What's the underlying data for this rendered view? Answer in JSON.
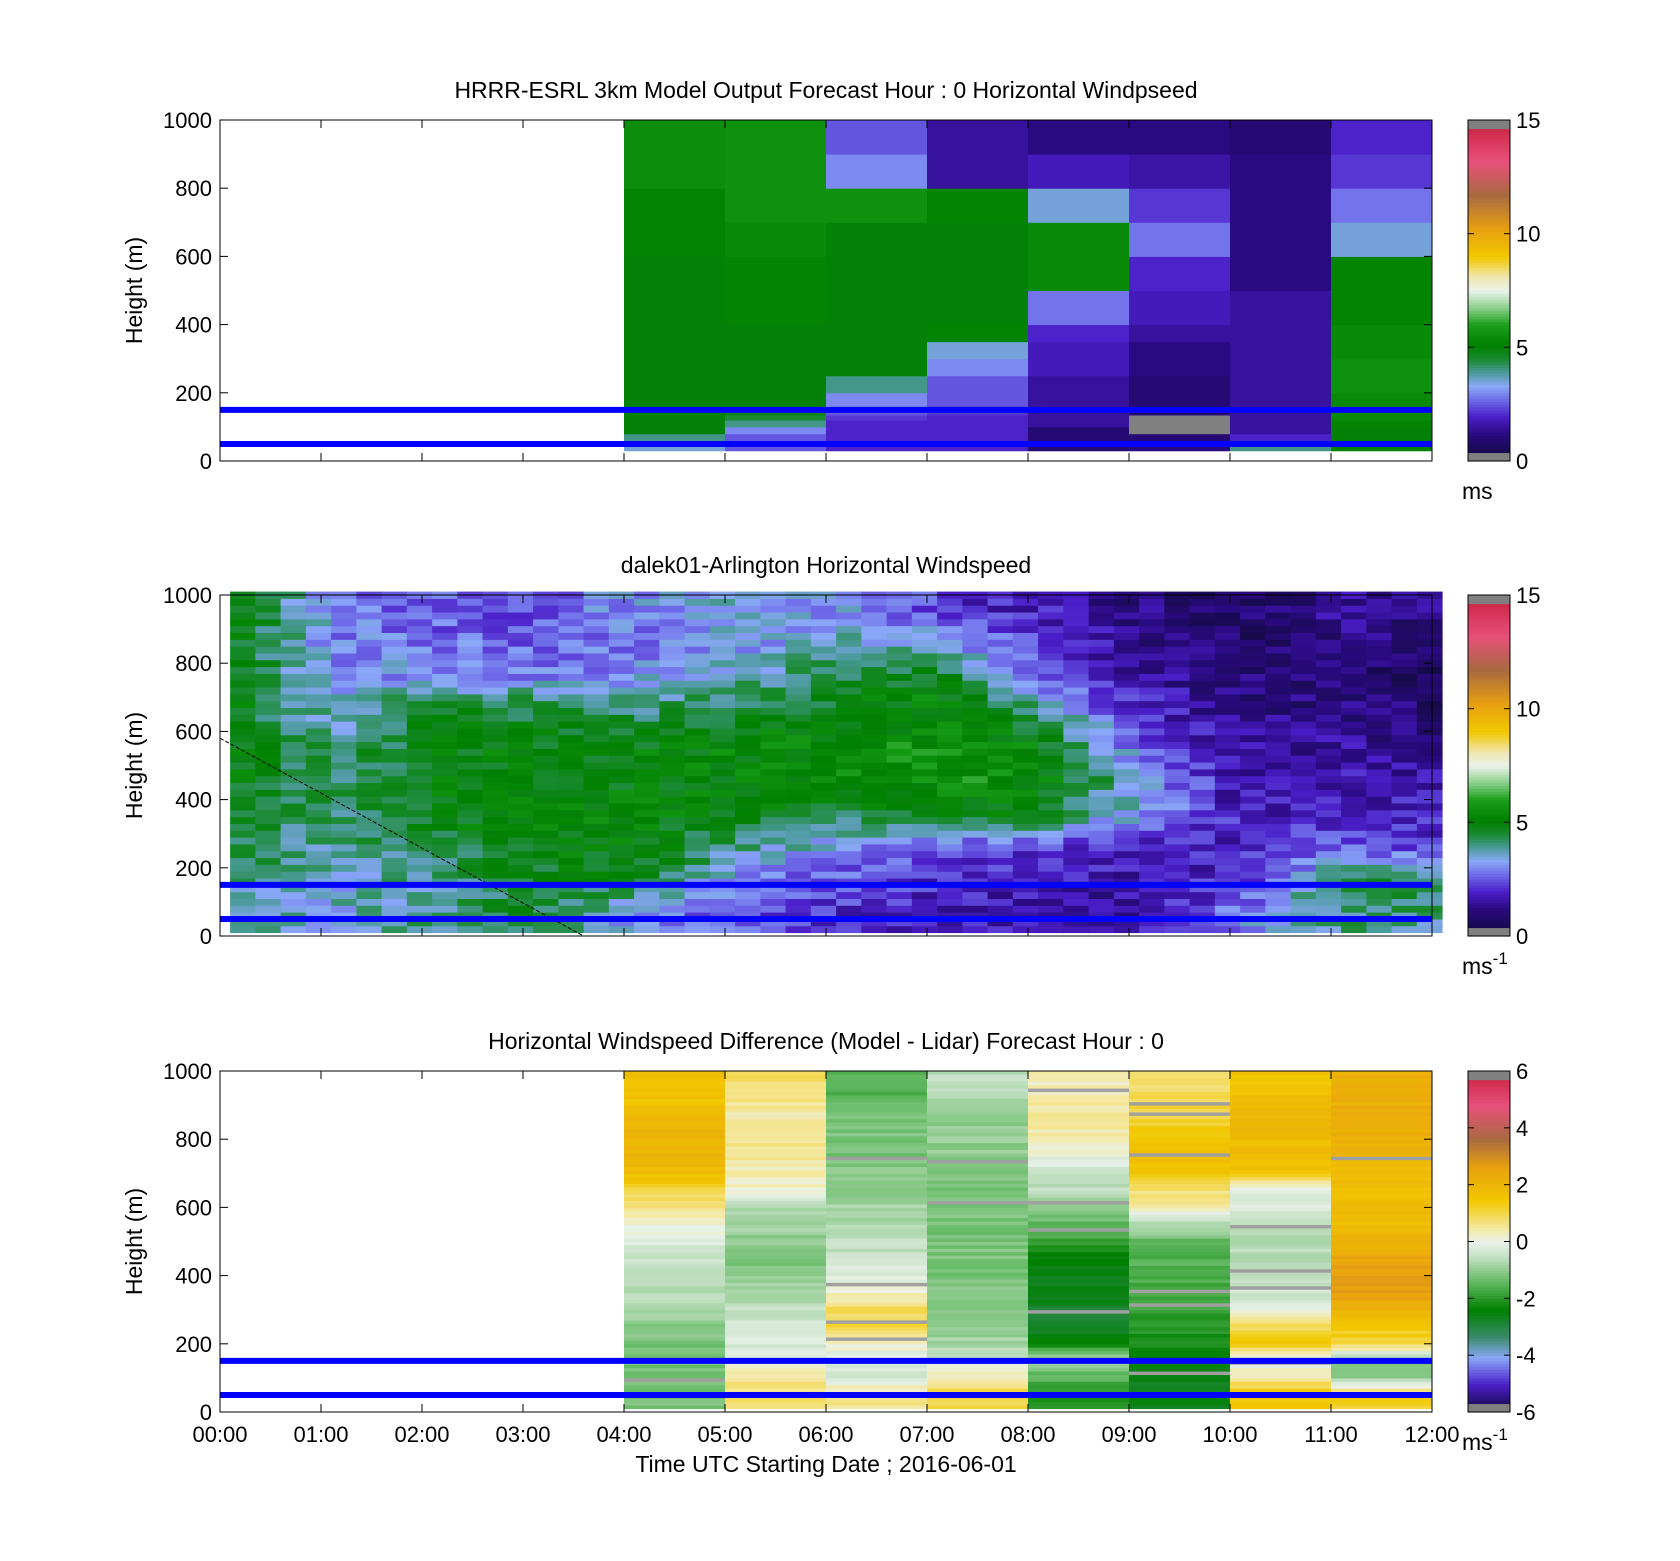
{
  "chart_data": [
    {
      "type": "heatmap",
      "title": "HRRR-ESRL 3km Model Output   Forecast Hour : 0 Horizontal Windpseed",
      "ylabel": "Height (m)",
      "xlabel": "",
      "ylim": [
        0,
        1000
      ],
      "yticks": [
        "0",
        "200",
        "400",
        "600",
        "800",
        "1000"
      ],
      "xlim": [
        0,
        12
      ],
      "x_start": 4,
      "x_step": 1,
      "colorbar": {
        "min": 0,
        "max": 15,
        "ticks": [
          "0",
          "5",
          "10",
          "15"
        ],
        "unit": "ms",
        "unit_sup": ""
      },
      "reference_lines_m": [
        50,
        150
      ],
      "levels_m": [
        30,
        45,
        60,
        80,
        100,
        120,
        135,
        150,
        200,
        250,
        300,
        350,
        400,
        500,
        600,
        700,
        800,
        900
      ],
      "columns": [
        {
          "x": 4,
          "values": [
            3.5,
            3.0,
            4.0,
            5.0,
            5.0,
            5.0,
            5.0,
            5.0,
            5.0,
            5.0,
            5.0,
            5.0,
            5.0,
            5.0,
            5.2,
            5.2,
            5.5,
            5.5
          ]
        },
        {
          "x": 5,
          "values": [
            2.5,
            2.5,
            2.5,
            3.0,
            4.0,
            4.5,
            4.8,
            5.0,
            5.0,
            5.0,
            5.0,
            5.0,
            5.2,
            5.2,
            5.4,
            5.6,
            5.6,
            5.6
          ]
        },
        {
          "x": 6,
          "values": [
            2.0,
            2.0,
            2.0,
            2.0,
            2.0,
            2.2,
            2.5,
            3.0,
            4.0,
            5.0,
            5.0,
            5.0,
            5.0,
            5.0,
            5.0,
            5.6,
            3.0,
            2.5
          ]
        },
        {
          "x": 7,
          "values": [
            2.0,
            2.0,
            2.0,
            2.0,
            2.0,
            2.0,
            2.2,
            2.5,
            2.5,
            3.0,
            3.5,
            5.2,
            5.0,
            5.0,
            5.0,
            5.2,
            1.5,
            1.5
          ]
        },
        {
          "x": 8,
          "values": [
            1.0,
            1.0,
            1.0,
            1.0,
            1.5,
            1.5,
            1.5,
            1.5,
            1.5,
            1.8,
            1.8,
            2.0,
            2.8,
            5.4,
            5.4,
            3.5,
            1.8,
            1.2
          ]
        },
        {
          "x": 9,
          "values": [
            1.2,
            1.0,
            1.0,
            0.0,
            0.0,
            0.0,
            1.0,
            1.0,
            1.0,
            1.2,
            1.2,
            1.5,
            1.8,
            2.0,
            2.8,
            2.2,
            1.6,
            1.2
          ]
        },
        {
          "x": 10,
          "values": [
            4.0,
            2.5,
            2.0,
            1.5,
            1.5,
            1.5,
            1.5,
            1.5,
            1.5,
            1.5,
            1.5,
            1.5,
            1.5,
            1.2,
            1.2,
            1.2,
            1.2,
            1.0
          ]
        },
        {
          "x": 11,
          "values": [
            5.0,
            5.0,
            5.0,
            5.0,
            5.2,
            5.4,
            5.4,
            5.4,
            5.6,
            5.6,
            5.4,
            5.4,
            5.2,
            5.2,
            3.5,
            2.8,
            2.2,
            2.0
          ]
        }
      ]
    },
    {
      "type": "heatmap",
      "title": "dalek01-Arlington  Horizontal Windspeed",
      "ylabel": "Height (m)",
      "xlabel": "",
      "ylim": [
        0,
        1000
      ],
      "yticks": [
        "0",
        "200",
        "400",
        "600",
        "800",
        "1000"
      ],
      "xlim": [
        0,
        12
      ],
      "x_start": 0.1,
      "x_step": 0.25,
      "x_end": 11.9,
      "colorbar": {
        "min": 0,
        "max": 15,
        "ticks": [
          "0",
          "5",
          "10",
          "15"
        ],
        "unit": "ms",
        "unit_sup": "-1"
      },
      "reference_lines_m": [
        50,
        150
      ],
      "diagonal_line": {
        "x": [
          0,
          3.6
        ],
        "y": [
          580,
          0
        ]
      },
      "summary_profiles": {
        "heights_m": [
          50,
          150,
          250,
          350,
          450,
          550,
          650,
          750,
          850,
          950
        ],
        "columns": [
          {
            "x": 0,
            "values": [
              4.0,
              4.0,
              4.5,
              4.8,
              5.0,
              5.0,
              5.0,
              5.0,
              5.0,
              5.0
            ]
          },
          {
            "x": 1,
            "values": [
              3.5,
              3.5,
              3.8,
              4.0,
              4.2,
              4.0,
              3.5,
              3.2,
              3.0,
              3.0
            ]
          },
          {
            "x": 2,
            "values": [
              4.0,
              4.0,
              4.5,
              5.0,
              5.0,
              5.0,
              4.8,
              3.2,
              2.8,
              2.5
            ]
          },
          {
            "x": 3,
            "values": [
              4.5,
              4.8,
              5.0,
              5.2,
              5.0,
              5.0,
              4.6,
              3.0,
              2.6,
              2.4
            ]
          },
          {
            "x": 4,
            "values": [
              3.0,
              4.5,
              5.2,
              5.2,
              5.0,
              5.0,
              4.2,
              3.2,
              2.8,
              3.2
            ]
          },
          {
            "x": 5,
            "values": [
              2.5,
              3.0,
              4.0,
              5.0,
              5.2,
              5.2,
              4.6,
              3.6,
              3.2,
              3.4
            ]
          },
          {
            "x": 6,
            "values": [
              2.0,
              2.5,
              3.2,
              4.5,
              5.4,
              5.4,
              5.0,
              4.4,
              3.6,
              3.2
            ]
          },
          {
            "x": 7,
            "values": [
              1.8,
              2.0,
              2.5,
              5.0,
              5.8,
              5.6,
              5.4,
              5.0,
              3.4,
              2.2
            ]
          },
          {
            "x": 8,
            "values": [
              1.5,
              1.8,
              2.2,
              4.8,
              5.4,
              5.2,
              4.0,
              2.8,
              2.2,
              1.8
            ]
          },
          {
            "x": 9,
            "values": [
              1.5,
              1.6,
              2.0,
              3.2,
              3.4,
              2.6,
              2.0,
              1.6,
              1.2,
              1.2
            ]
          },
          {
            "x": 10,
            "values": [
              3.0,
              2.2,
              1.8,
              1.8,
              1.5,
              1.5,
              1.2,
              1.0,
              0.8,
              0.8
            ]
          },
          {
            "x": 11,
            "values": [
              4.0,
              4.5,
              2.5,
              2.0,
              1.8,
              1.5,
              1.2,
              1.0,
              1.2,
              1.5
            ]
          }
        ]
      }
    },
    {
      "type": "heatmap",
      "title": "Horizontal Windspeed Difference (Model - Lidar) Forecast Hour : 0",
      "ylabel": "Height (m)",
      "xlabel": "Time UTC  Starting Date ; 2016-06-01",
      "ylim": [
        0,
        1000
      ],
      "yticks": [
        "0",
        "200",
        "400",
        "600",
        "800",
        "1000"
      ],
      "xlim": [
        0,
        12
      ],
      "xticks": [
        "00:00",
        "01:00",
        "02:00",
        "03:00",
        "04:00",
        "05:00",
        "06:00",
        "07:00",
        "08:00",
        "09:00",
        "10:00",
        "11:00",
        "12:00"
      ],
      "x_start": 4,
      "x_step": 1,
      "colorbar": {
        "min": -6,
        "max": 6,
        "ticks": [
          "-6",
          "-4",
          "-2",
          "0",
          "2",
          "4",
          "6"
        ],
        "unit": "ms",
        "unit_sup": "-1"
      },
      "reference_lines_m": [
        50,
        150
      ],
      "profile_heights_m": [
        50,
        100,
        150,
        200,
        250,
        300,
        350,
        400,
        450,
        500,
        550,
        600,
        650,
        700,
        750,
        800,
        850,
        900,
        950
      ],
      "columns": [
        {
          "x": 4,
          "values": [
            -1.2,
            -1.2,
            -1.2,
            -1.2,
            -1.0,
            -0.8,
            -0.6,
            -0.5,
            -0.4,
            -0.2,
            0.2,
            0.6,
            1.2,
            1.8,
            2.0,
            2.0,
            2.0,
            1.6,
            1.6
          ]
        },
        {
          "x": 5,
          "values": [
            0.8,
            0.5,
            -0.2,
            -0.3,
            -0.3,
            -0.5,
            -0.8,
            -1.0,
            -1.2,
            -1.0,
            -0.8,
            -0.6,
            0.2,
            0.4,
            0.5,
            0.6,
            0.4,
            0.6,
            0.8
          ]
        },
        {
          "x": 6,
          "values": [
            0.6,
            -0.3,
            -0.3,
            0.3,
            1.0,
            0.8,
            0.2,
            -0.2,
            -0.5,
            -0.6,
            -0.8,
            -0.8,
            -1.0,
            -1.0,
            -1.2,
            -1.2,
            -1.2,
            -1.4,
            -1.6
          ]
        },
        {
          "x": 7,
          "values": [
            1.0,
            0.4,
            -0.4,
            -0.8,
            -1.0,
            -1.0,
            -1.0,
            -1.2,
            -1.2,
            -1.2,
            -1.2,
            -1.2,
            -1.2,
            -1.2,
            -1.0,
            -1.0,
            -1.0,
            -0.8,
            -0.6
          ]
        },
        {
          "x": 8,
          "values": [
            -2.0,
            -1.5,
            -0.6,
            -2.4,
            -2.8,
            -2.8,
            -2.6,
            -2.6,
            -2.4,
            -1.8,
            -1.4,
            -1.0,
            -0.6,
            -0.3,
            0.0,
            0.3,
            0.5,
            0.4,
            0.3
          ]
        },
        {
          "x": 9,
          "values": [
            -2.6,
            -2.6,
            -2.4,
            -2.2,
            -2.0,
            -1.8,
            -1.8,
            -1.6,
            -1.6,
            -1.4,
            -0.6,
            0.4,
            0.8,
            1.6,
            1.6,
            1.5,
            1.2,
            1.0,
            0.8
          ]
        },
        {
          "x": 10,
          "values": [
            1.4,
            0.4,
            -0.2,
            1.6,
            0.8,
            -0.2,
            -0.4,
            -0.4,
            -0.6,
            -0.6,
            -0.4,
            -0.2,
            0.0,
            1.6,
            1.8,
            1.8,
            2.0,
            1.8,
            1.6
          ]
        },
        {
          "x": 11,
          "values": [
            1.2,
            -1.2,
            -1.0,
            1.2,
            1.4,
            2.2,
            2.6,
            2.6,
            2.4,
            2.0,
            1.8,
            1.8,
            1.8,
            1.8,
            2.0,
            2.2,
            2.2,
            2.2,
            2.2
          ]
        }
      ]
    }
  ]
}
